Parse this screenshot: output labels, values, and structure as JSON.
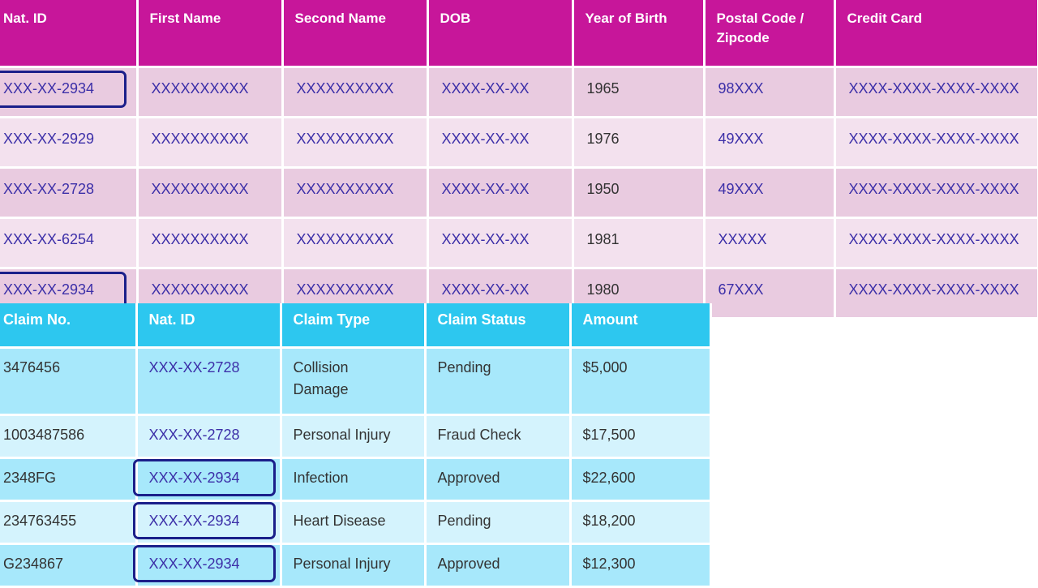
{
  "persons_table": {
    "headers": [
      "Nat. ID",
      "First Name",
      "Second Name",
      "DOB",
      "Year of Birth",
      "Postal Code / Zipcode",
      "Credit Card"
    ],
    "header_color": "#c7169a",
    "row_colors": [
      "#e9cbe0",
      "#f3e1ee"
    ],
    "rows": [
      {
        "nat_id": "XXX-XX-2934",
        "first": "XXXXXXXXXX",
        "second": "XXXXXXXXXX",
        "dob": "XXXX-XX-XX",
        "year": "1965",
        "postal": "98XXX",
        "card": "XXXX-XXXX-XXXX-XXXX",
        "highlighted": true
      },
      {
        "nat_id": "XXX-XX-2929",
        "first": "XXXXXXXXXX",
        "second": "XXXXXXXXXX",
        "dob": "XXXX-XX-XX",
        "year": "1976",
        "postal": "49XXX",
        "card": "XXXX-XXXX-XXXX-XXXX",
        "highlighted": false
      },
      {
        "nat_id": "XXX-XX-2728",
        "first": "XXXXXXXXXX",
        "second": "XXXXXXXXXX",
        "dob": "XXXX-XX-XX",
        "year": "1950",
        "postal": "49XXX",
        "card": "XXXX-XXXX-XXXX-XXXX",
        "highlighted": false
      },
      {
        "nat_id": "XXX-XX-6254",
        "first": "XXXXXXXXXX",
        "second": "XXXXXXXXXX",
        "dob": "XXXX-XX-XX",
        "year": "1981",
        "postal": "XXXXX",
        "card": "XXXX-XXXX-XXXX-XXXX",
        "highlighted": false
      },
      {
        "nat_id": "XXX-XX-2934",
        "first": "XXXXXXXXXX",
        "second": "XXXXXXXXXX",
        "dob": "XXXX-XX-XX",
        "year": "1980",
        "postal": "67XXX",
        "card": "XXXX-XXXX-XXXX-XXXX",
        "highlighted": true
      }
    ]
  },
  "claims_table": {
    "headers": [
      "Claim No.",
      "Nat. ID",
      "Claim Type",
      "Claim Status",
      "Amount"
    ],
    "header_color": "#2dc7ef",
    "row_colors": [
      "#a7e8fb",
      "#d4f3fd"
    ],
    "rows": [
      {
        "claim_no": "3476456",
        "nat_id": "XXX-XX-2728",
        "type": "Collision Damage",
        "status": "Pending",
        "amount": "$5,000",
        "highlighted": false
      },
      {
        "claim_no": "1003487586",
        "nat_id": "XXX-XX-2728",
        "type": "Personal Injury",
        "status": "Fraud Check",
        "amount": "$17,500",
        "highlighted": false
      },
      {
        "claim_no": "2348FG",
        "nat_id": "XXX-XX-2934",
        "type": "Infection",
        "status": "Approved",
        "amount": "$22,600",
        "highlighted": true
      },
      {
        "claim_no": "234763455",
        "nat_id": "XXX-XX-2934",
        "type": "Heart Disease",
        "status": "Pending",
        "amount": "$18,200",
        "highlighted": true
      },
      {
        "claim_no": "G234867",
        "nat_id": "XXX-XX-2934",
        "type": "Personal Injury",
        "status": "Approved",
        "amount": "$12,300",
        "highlighted": true
      }
    ]
  },
  "highlight_color": "#1b1f8a"
}
